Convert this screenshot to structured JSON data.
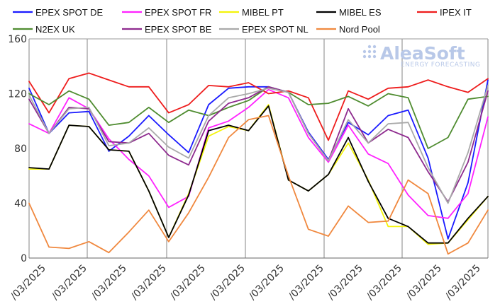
{
  "watermark": {
    "brand": "AleaSoft",
    "tagline": "ENERGY FORECASTING"
  },
  "chart_data": {
    "type": "line",
    "ylim": [
      0,
      160
    ],
    "yticks": [
      0,
      40,
      80,
      120,
      160
    ],
    "grid": "vertical-weekly",
    "legend_position": "top",
    "x_tick_labels": [
      "/03/2025",
      "/03/2025",
      "/03/2025",
      "/03/2025",
      "/03/2025",
      "/03/2025",
      "/03/2025",
      "/03/2025",
      "/03/2025",
      "/03/2025",
      "/03/2025",
      "/03/2025"
    ],
    "series": [
      {
        "name": "EPEX SPOT DE",
        "color": "#1a1aff",
        "values": [
          124,
          91,
          106,
          107,
          78,
          89,
          104,
          90,
          77,
          112,
          124,
          125,
          125,
          121,
          92,
          72,
          99,
          90,
          104,
          108,
          73,
          14,
          55,
          130
        ]
      },
      {
        "name": "EPEX SPOT FR",
        "color": "#ff22ff",
        "values": [
          98,
          91,
          117,
          109,
          87,
          72,
          60,
          37,
          45,
          95,
          100,
          110,
          123,
          117,
          88,
          70,
          97,
          76,
          69,
          46,
          31,
          29,
          47,
          103
        ]
      },
      {
        "name": "MIBEL PT",
        "color": "#f4f40a",
        "values": [
          65,
          65,
          97,
          96,
          79,
          78,
          49,
          15,
          47,
          89,
          96,
          93,
          112,
          57,
          49,
          61,
          84,
          57,
          23,
          23,
          10,
          11,
          28,
          45
        ]
      },
      {
        "name": "MIBEL ES",
        "color": "#000000",
        "values": [
          66,
          65,
          97,
          96,
          79,
          78,
          49,
          15,
          46,
          93,
          97,
          93,
          111,
          57,
          49,
          61,
          88,
          56,
          29,
          23,
          11,
          11,
          29,
          45
        ]
      },
      {
        "name": "IPEX IT",
        "color": "#ee1c1c",
        "values": [
          129,
          106,
          131,
          135,
          130,
          125,
          125,
          106,
          112,
          126,
          125,
          128,
          120,
          122,
          117,
          86,
          122,
          116,
          124,
          125,
          130,
          125,
          121,
          131
        ]
      },
      {
        "name": "N2EX UK",
        "color": "#4f8c30",
        "values": [
          120,
          112,
          122,
          116,
          97,
          99,
          110,
          99,
          108,
          104,
          110,
          115,
          125,
          121,
          112,
          113,
          118,
          111,
          120,
          117,
          80,
          88,
          116,
          118
        ]
      },
      {
        "name": "EPEX SPOT BE",
        "color": "#8e2a8e",
        "values": [
          116,
          91,
          110,
          109,
          85,
          84,
          91,
          75,
          68,
          100,
          113,
          117,
          125,
          121,
          91,
          71,
          109,
          84,
          94,
          88,
          63,
          41,
          70,
          122
        ]
      },
      {
        "name": "EPEX SPOT NL",
        "color": "#a9a9a9",
        "values": [
          119,
          91,
          109,
          110,
          82,
          84,
          95,
          81,
          73,
          104,
          117,
          120,
          124,
          121,
          91,
          71,
          101,
          84,
          98,
          99,
          66,
          40,
          77,
          126
        ]
      },
      {
        "name": "Nord Pool",
        "color": "#f0883e",
        "values": [
          40,
          8,
          7,
          12,
          4,
          19,
          35,
          12,
          33,
          59,
          88,
          101,
          104,
          60,
          21,
          16,
          38,
          26,
          27,
          57,
          47,
          3,
          11,
          35
        ]
      }
    ]
  }
}
